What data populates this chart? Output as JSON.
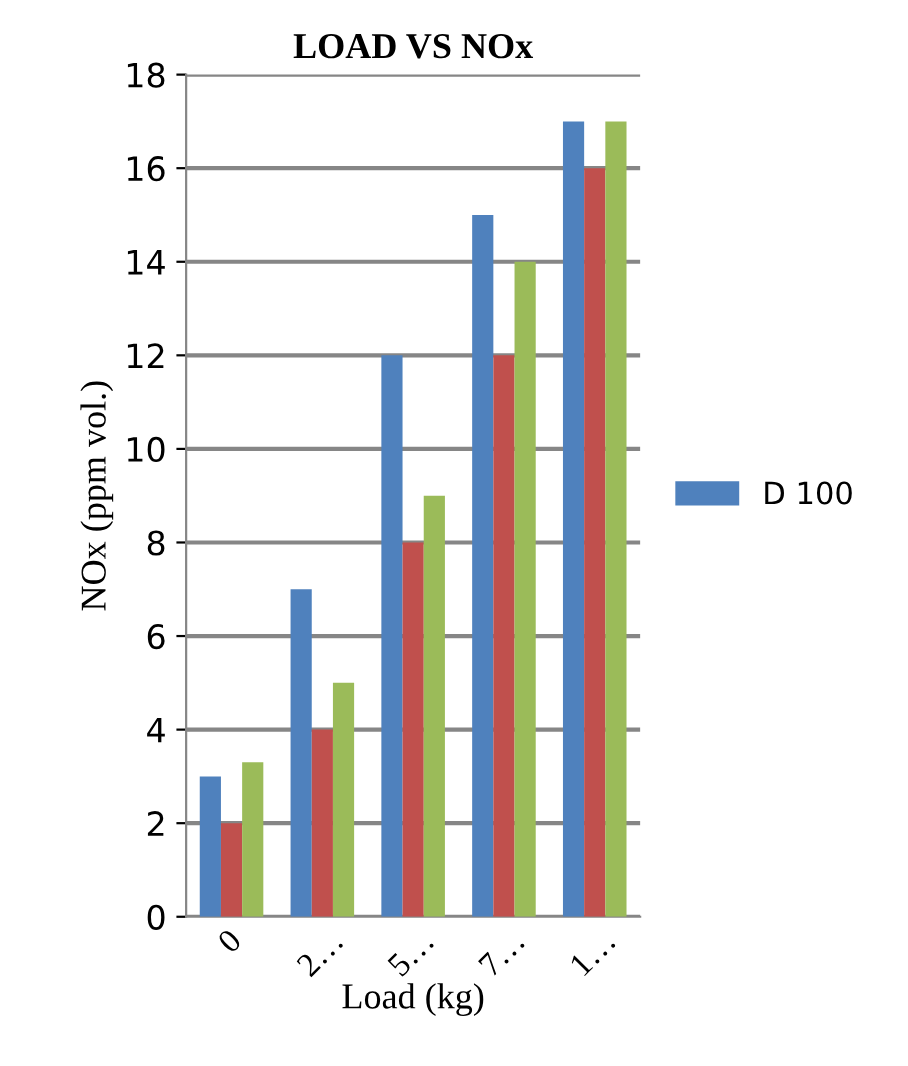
{
  "chart_data": {
    "type": "bar",
    "title": "LOAD VS NOx",
    "xlabel": "Load (kg)",
    "ylabel": "NOx (ppm vol.)",
    "categories": [
      "0",
      "2…",
      "5…",
      "7…",
      "1…"
    ],
    "series": [
      {
        "name": "D 100",
        "color": "#4f81bd",
        "values": [
          3,
          7,
          12,
          15,
          17
        ]
      },
      {
        "color": "#c0504d",
        "values": [
          2,
          4,
          8,
          12,
          16
        ]
      },
      {
        "color": "#9bbb59",
        "values": [
          3.3,
          5,
          9,
          14,
          17
        ]
      }
    ],
    "ylim": [
      0,
      18
    ],
    "yticks": [
      0,
      2,
      4,
      6,
      8,
      10,
      12,
      14,
      16,
      18
    ],
    "grid": "y",
    "legend": "right"
  }
}
